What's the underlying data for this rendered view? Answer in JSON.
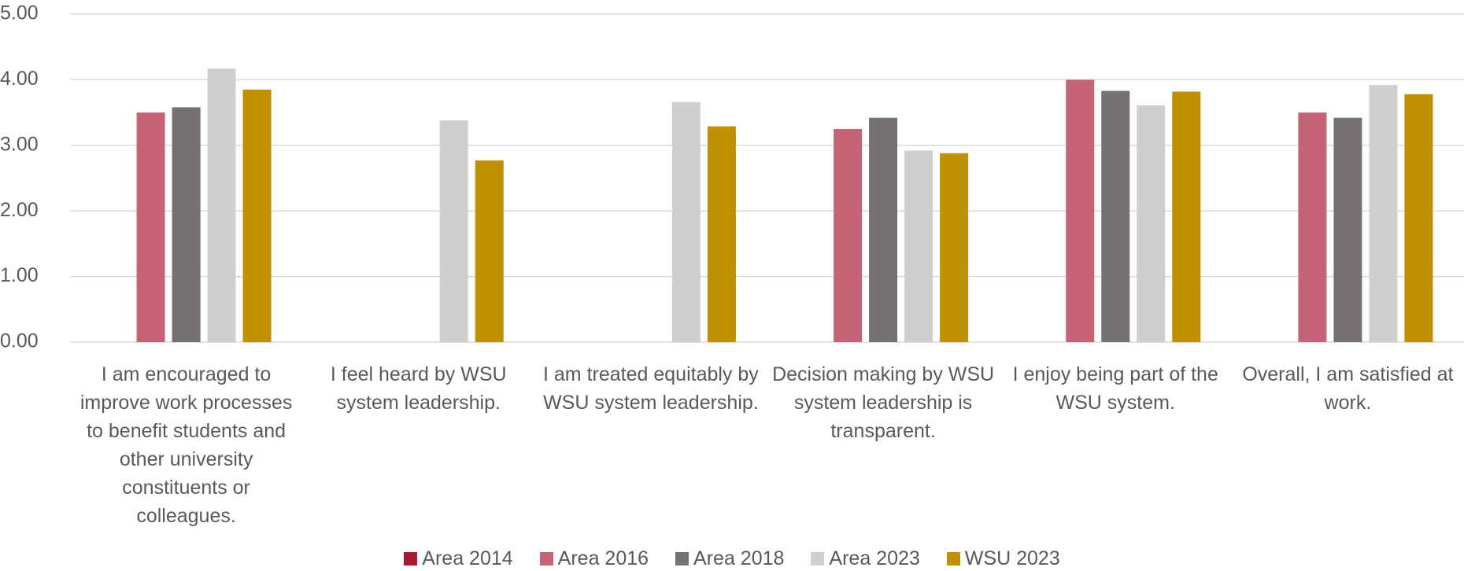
{
  "chart_data": {
    "type": "bar",
    "categories": [
      "I am encouraged to improve work processes to benefit students and other university constituents or colleagues.",
      "I feel heard by WSU system leadership.",
      "I am treated equitably by WSU system leadership.",
      "Decision making by WSU system leadership is transparent.",
      "I enjoy being part of the WSU system.",
      "Overall, I am satisfied at work."
    ],
    "series": [
      {
        "name": "Area 2014",
        "color": "#a6192e",
        "values": [
          null,
          null,
          null,
          null,
          null,
          null
        ]
      },
      {
        "name": "Area 2016",
        "color": "#c56475",
        "values": [
          3.5,
          null,
          null,
          3.25,
          4.0,
          3.5
        ]
      },
      {
        "name": "Area 2018",
        "color": "#767171",
        "values": [
          3.58,
          null,
          null,
          3.42,
          3.83,
          3.42
        ]
      },
      {
        "name": "Area 2023",
        "color": "#d0cece",
        "values": [
          4.17,
          3.38,
          3.66,
          2.92,
          3.61,
          3.92
        ]
      },
      {
        "name": "WSU 2023",
        "color": "#bf9000",
        "values": [
          3.85,
          2.77,
          3.29,
          2.88,
          3.82,
          3.78
        ]
      }
    ],
    "ylim": [
      0,
      5
    ],
    "yticks": [
      {
        "value": 0,
        "label": "0.00"
      },
      {
        "value": 1,
        "label": "1.00"
      },
      {
        "value": 2,
        "label": "2.00"
      },
      {
        "value": 3,
        "label": "3.00"
      },
      {
        "value": 4,
        "label": "4.00"
      },
      {
        "value": 5,
        "label": "5.00"
      }
    ],
    "grid": true,
    "legend": "bottom"
  }
}
